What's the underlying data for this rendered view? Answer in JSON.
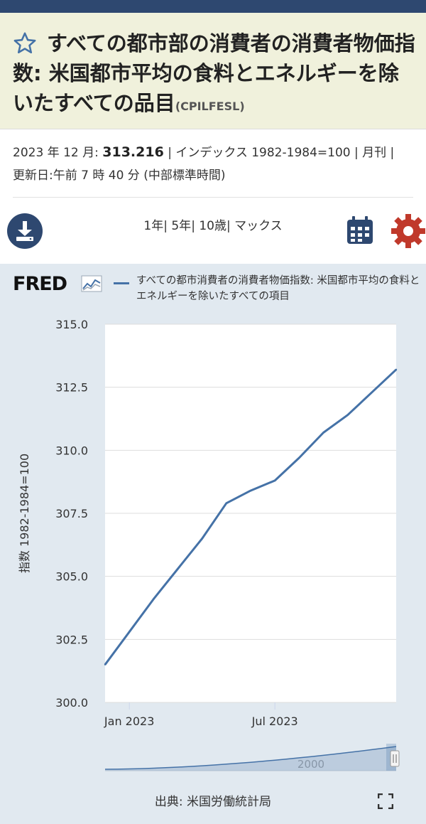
{
  "header": {
    "title": "すべての都市部の消費者の消費者物価指数: 米国都市平均の食料とエネルギーを除いたすべての品目",
    "series_id": "(CPILFESL)"
  },
  "meta": {
    "date_label": "2023 年 12 月:",
    "value": "313.216",
    "units": "| インデックス 1982-1984=100 | 月刊 |",
    "updated": "更新日:午前 7 時 40 分 (中部標準時間)"
  },
  "toolbar": {
    "range_1y": "1年",
    "range_5y": "| 5年",
    "range_10y": "| 10歳",
    "range_max": "| マックス"
  },
  "fred_logo": "FRED",
  "source_label": "出典: 米国労働統計局",
  "colors": {
    "series": "#4572a7",
    "panel": "#e1e9f0",
    "topbar": "#2e4870",
    "gear": "#c0392b"
  },
  "chart_data": {
    "type": "line",
    "title": "",
    "xlabel": "",
    "ylabel": "指数 1982-1984=100",
    "ylim": [
      300,
      315
    ],
    "yticks": [
      300.0,
      302.5,
      305.0,
      307.5,
      310.0,
      312.5,
      315.0
    ],
    "ytick_labels": [
      "300.0",
      "302.5",
      "305.0",
      "307.5",
      "310.0",
      "312.5",
      "315.0"
    ],
    "xtick_labels": [
      "Jan 2023",
      "Jul 2023"
    ],
    "grid": true,
    "legend_position": "top",
    "series": [
      {
        "name": "すべての都市消費者の消費者物価指数: 米国都市平均の食料とエネルギーを除いたすべての項目",
        "x": [
          "2022-12",
          "2023-01",
          "2023-02",
          "2023-03",
          "2023-04",
          "2023-05",
          "2023-06",
          "2023-07",
          "2023-08",
          "2023-09",
          "2023-10",
          "2023-11",
          "2023-12"
        ],
        "values": [
          301.5,
          302.8,
          304.1,
          305.3,
          306.5,
          307.9,
          308.4,
          308.8,
          309.7,
          310.7,
          311.4,
          312.3,
          313.2
        ]
      }
    ],
    "navigator_label": "2000"
  }
}
